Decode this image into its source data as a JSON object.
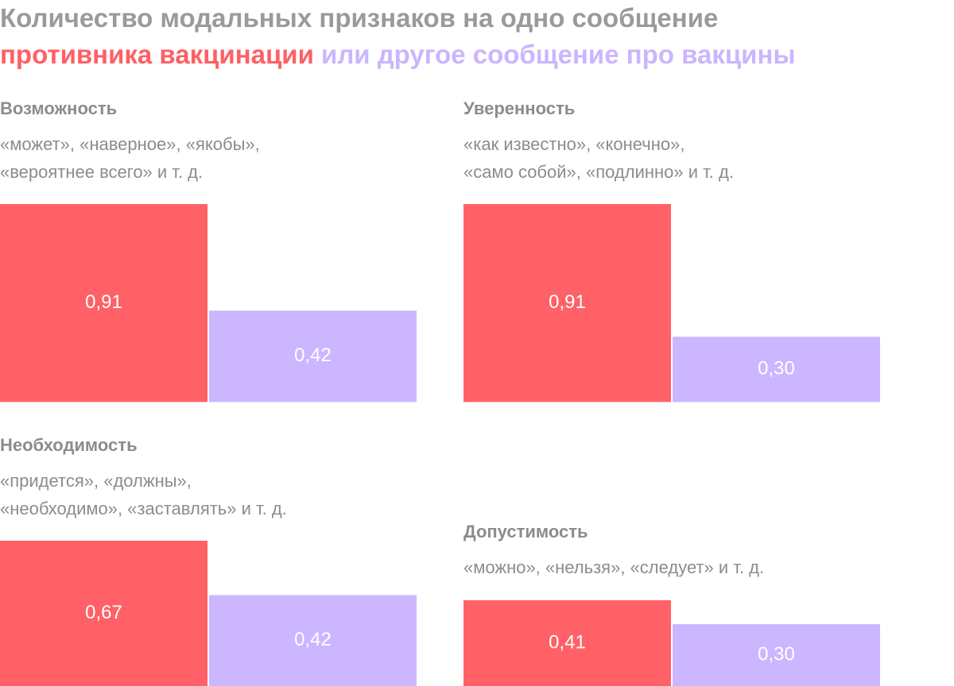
{
  "title": {
    "line1": "Количество модальных признаков на одно сообщение",
    "series_a": "противника вакцинации",
    "connector": " ",
    "series_b": "или другое сообщение про вакцины"
  },
  "colors": {
    "series_a": "#ff6167",
    "series_b": "#ccb6ff",
    "text": "#8c8c8c",
    "bar_label": "#ffffff"
  },
  "chart_data": [
    {
      "type": "bar",
      "title": "Возможность",
      "subtitle": [
        "«может», «наверное», «якобы»,",
        "«вероятнее всего» и т. д."
      ],
      "categories": [
        "противника вакцинации",
        "или другое сообщение про вакцины"
      ],
      "values": [
        0.91,
        0.42
      ],
      "labels": [
        "0,91",
        "0,42"
      ]
    },
    {
      "type": "bar",
      "title": "Уверенность",
      "subtitle": [
        "«как известно», «конечно»,",
        "«само собой», «подлинно» и т. д."
      ],
      "categories": [
        "противника вакцинации",
        "или другое сообщение про вакцины"
      ],
      "values": [
        0.91,
        0.3
      ],
      "labels": [
        "0,91",
        "0,30"
      ]
    },
    {
      "type": "bar",
      "title": "Необходимость",
      "subtitle": [
        "«придется», «должны»,",
        "«необходимо», «заставлять» и т. д."
      ],
      "categories": [
        "противника вакцинации",
        "или другое сообщение про вакцины"
      ],
      "values": [
        0.67,
        0.42
      ],
      "labels": [
        "0,67",
        "0,42"
      ]
    },
    {
      "type": "bar",
      "title": "Допустимость",
      "subtitle": [
        "«можно», «нельзя», «следует» и т. д."
      ],
      "categories": [
        "противника вакцинации",
        "или другое сообщение про вакцины"
      ],
      "values": [
        0.41,
        0.3
      ],
      "labels": [
        "0,41",
        "0,30"
      ]
    }
  ]
}
